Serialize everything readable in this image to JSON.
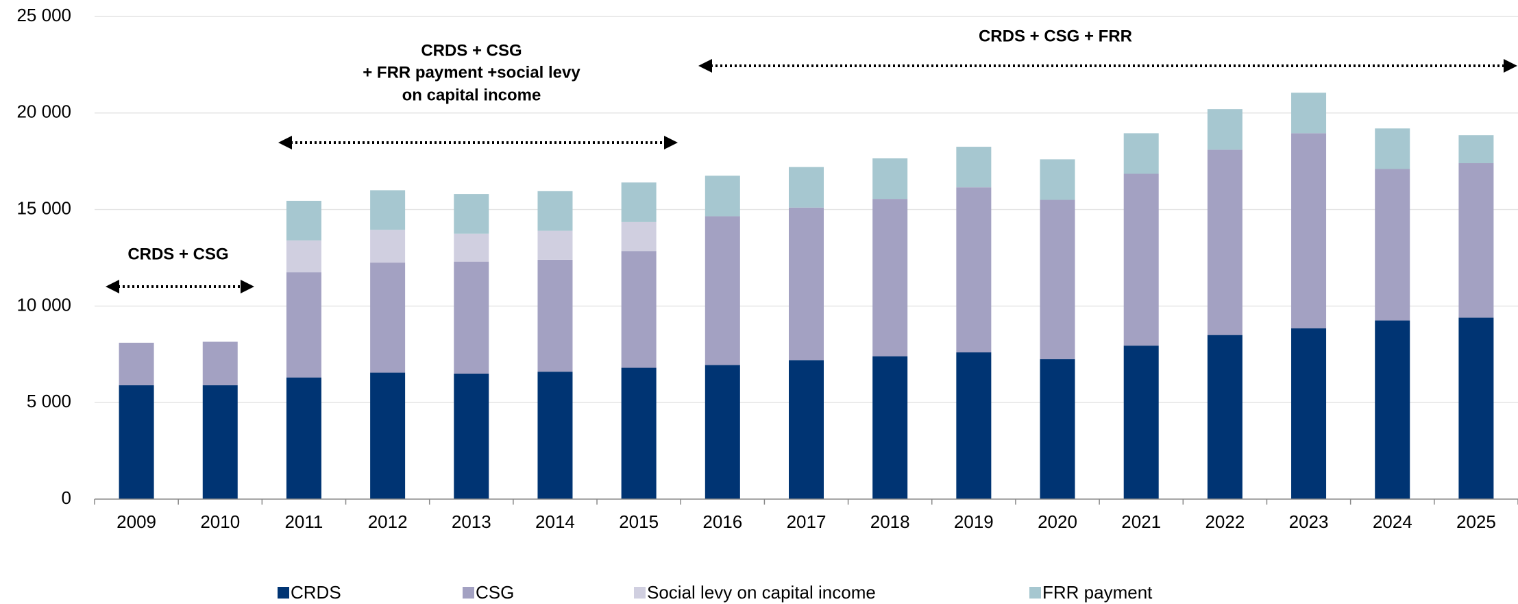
{
  "chart_data": {
    "type": "bar",
    "stacked": true,
    "categories": [
      "2009",
      "2010",
      "2011",
      "2012",
      "2013",
      "2014",
      "2015",
      "2016",
      "2017",
      "2018",
      "2019",
      "2020",
      "2021",
      "2022",
      "2023",
      "2024",
      "2025"
    ],
    "series": [
      {
        "name": "CRDS",
        "color": "#003473",
        "values": [
          5900,
          5900,
          6300,
          6550,
          6500,
          6600,
          6800,
          6950,
          7200,
          7400,
          7600,
          7250,
          7950,
          8500,
          8850,
          9250,
          9400
        ]
      },
      {
        "name": "CSG",
        "color": "#a3a1c2",
        "values": [
          2200,
          2250,
          5450,
          5700,
          5800,
          5800,
          6050,
          7700,
          7900,
          8150,
          8550,
          8250,
          8900,
          9600,
          10100,
          7850,
          8000
        ]
      },
      {
        "name": "Social levy on capital income",
        "color": "#d0cfe0",
        "values": [
          null,
          null,
          1650,
          1700,
          1450,
          1500,
          1500,
          null,
          null,
          null,
          null,
          null,
          null,
          null,
          null,
          null,
          null
        ]
      },
      {
        "name": "FRR payment",
        "color": "#a6c7d0",
        "values": [
          null,
          null,
          2050,
          2050,
          2050,
          2050,
          2050,
          2100,
          2100,
          2100,
          2100,
          2100,
          2100,
          2100,
          2100,
          2100,
          1450
        ]
      }
    ],
    "ylim": [
      0,
      25000
    ],
    "yticks": [
      0,
      {
        "value": 5000,
        "label": "5 000"
      },
      {
        "value": 10000,
        "label": "10 000"
      },
      {
        "value": 15000,
        "label": "15 000"
      },
      {
        "value": 20000,
        "label": "20 000"
      },
      {
        "value": 25000,
        "label": "25 000"
      }
    ],
    "grid": true,
    "legend": "bottom",
    "annotations": [
      {
        "lines": [
          "CRDS + CSG"
        ]
      },
      {
        "lines": [
          "CRDS + CSG",
          "+ FRR payment +social levy",
          "on capital income"
        ]
      },
      {
        "lines": [
          "CRDS + CSG + FRR"
        ]
      }
    ]
  }
}
